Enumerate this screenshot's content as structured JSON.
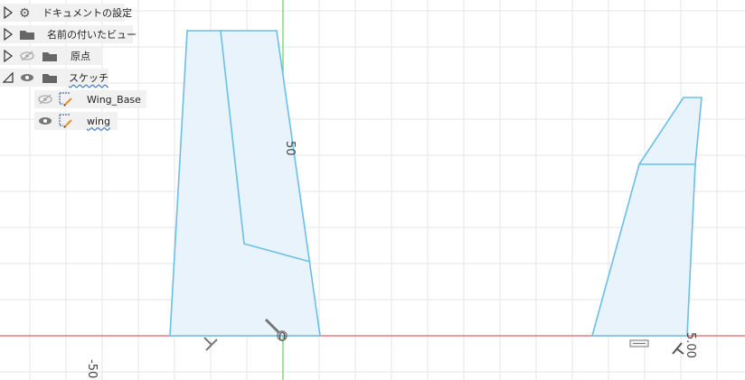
{
  "browser": {
    "items": [
      {
        "label": "ドキュメントの設定",
        "icon": "gear-icon",
        "expander": "collapsed"
      },
      {
        "label": "名前の付いたビュー",
        "icon": "folder-icon",
        "expander": "collapsed"
      },
      {
        "label": "原点",
        "icon": "folder-icon",
        "visibility": "hidden",
        "expander": "collapsed"
      },
      {
        "label": "スケッチ",
        "icon": "folder-icon",
        "visibility": "visible",
        "expander": "expanded"
      }
    ],
    "sketches": [
      {
        "label": "Wing_Base",
        "visibility": "hidden"
      },
      {
        "label": "wing",
        "visibility": "visible"
      }
    ]
  },
  "canvas": {
    "dim_labels": [
      "50",
      "-50",
      "0",
      "5.00"
    ],
    "colors": {
      "grid": "#e4e4e4",
      "x_axis": "#e06060",
      "y_axis": "#66cc66",
      "profile_stroke": "#6bbfe6",
      "profile_fill": "#e8f3fb"
    }
  }
}
